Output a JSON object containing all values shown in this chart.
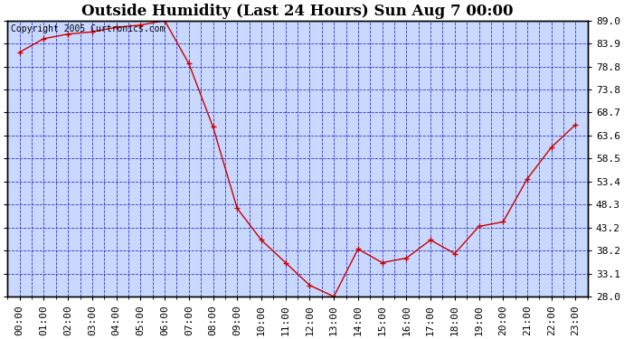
{
  "title": "Outside Humidity (Last 24 Hours) Sun Aug 7 00:00",
  "copyright": "Copyright 2005 Curtronics.com",
  "x_labels": [
    "00:00",
    "01:00",
    "02:00",
    "03:00",
    "04:00",
    "05:00",
    "06:00",
    "07:00",
    "08:00",
    "09:00",
    "10:00",
    "11:00",
    "12:00",
    "13:00",
    "14:00",
    "15:00",
    "16:00",
    "17:00",
    "18:00",
    "19:00",
    "20:00",
    "21:00",
    "22:00",
    "23:00"
  ],
  "y_values": [
    82.0,
    85.0,
    86.0,
    86.5,
    87.5,
    88.0,
    89.0,
    79.5,
    65.5,
    47.5,
    40.5,
    35.5,
    30.5,
    28.0,
    38.5,
    35.5,
    36.5,
    40.5,
    37.5,
    43.5,
    44.5,
    54.0,
    61.0,
    66.0
  ],
  "line_color": "#cc0000",
  "marker_color": "#cc0000",
  "fig_bg_color": "#ffffff",
  "plot_bg_color": "#c8d8ff",
  "grid_color": "#3333cc",
  "border_color": "#000000",
  "y_min": 28.0,
  "y_max": 89.0,
  "y_ticks": [
    28.0,
    33.1,
    38.2,
    43.2,
    48.3,
    53.4,
    58.5,
    63.6,
    68.7,
    73.8,
    78.8,
    83.9,
    89.0
  ],
  "title_fontsize": 12,
  "tick_fontsize": 8,
  "copyright_fontsize": 7
}
